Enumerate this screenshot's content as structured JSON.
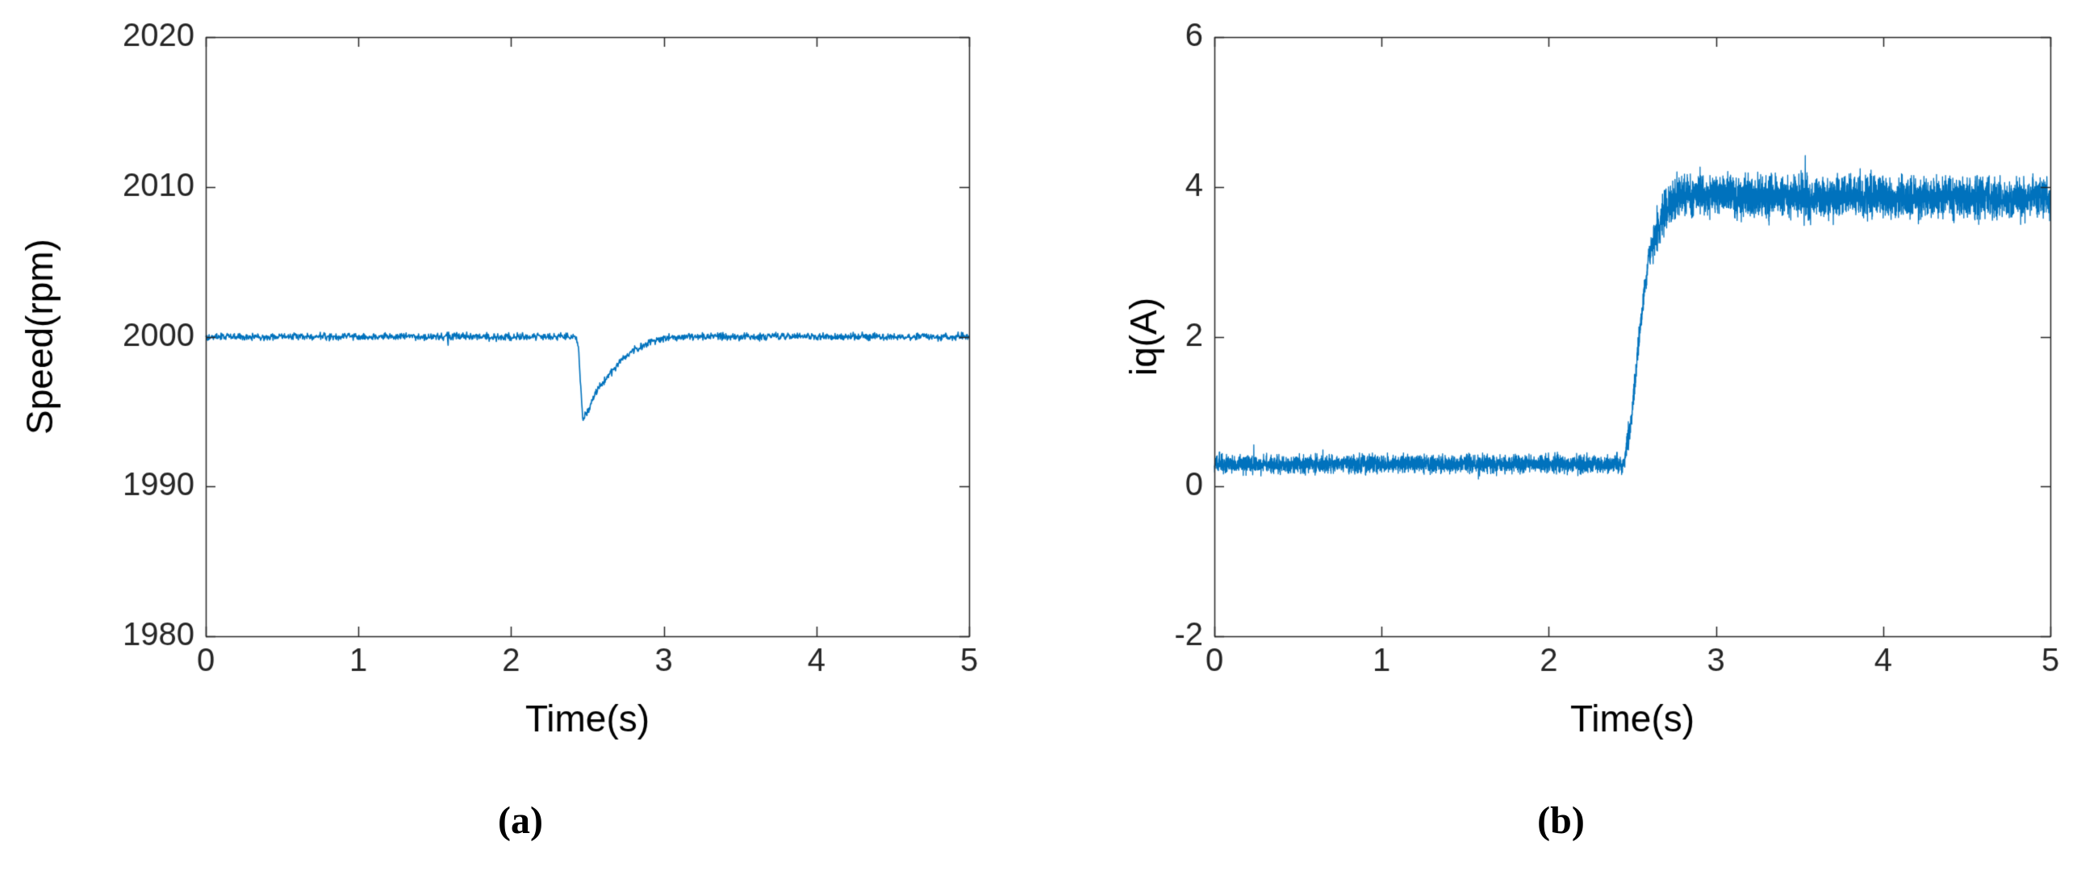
{
  "figure": {
    "background": "#ffffff",
    "axis_color": "#262626",
    "label_color": "#000000"
  },
  "chart_data": [
    {
      "id": "a",
      "type": "line",
      "title": "",
      "xlabel": "Time(s)",
      "ylabel": "Speed(rpm)",
      "caption": "(a)",
      "xlim": [
        0,
        5
      ],
      "ylim": [
        1980,
        2020
      ],
      "xticks": [
        0,
        1,
        2,
        3,
        4,
        5
      ],
      "xtick_labels": [
        "0",
        "1",
        "2",
        "3",
        "4",
        "5"
      ],
      "yticks": [
        1980,
        1990,
        2000,
        2010,
        2020
      ],
      "ytick_labels": [
        "1980",
        "1990",
        "2000",
        "2010",
        "2020"
      ],
      "grid": false,
      "legend": null,
      "line_color": "#0072BD",
      "series": [
        {
          "name": "speed",
          "description": "Motor speed holds about 2000 rpm, dips to about 1994 rpm at t=2.45 s under a load step, recovers to 2000 rpm by about t=3.1 s",
          "keypoints": [
            [
              0,
              2000
            ],
            [
              2.42,
              2000
            ],
            [
              2.44,
              1999.3
            ],
            [
              2.47,
              1994.4
            ],
            [
              2.5,
              1995.0
            ],
            [
              2.55,
              1996.2
            ],
            [
              2.6,
              1996.9
            ],
            [
              2.65,
              1997.6
            ],
            [
              2.72,
              1998.4
            ],
            [
              2.8,
              1999.1
            ],
            [
              2.9,
              1999.6
            ],
            [
              3.0,
              1999.9
            ],
            [
              3.15,
              2000
            ],
            [
              5,
              2000
            ]
          ],
          "noise_segments": [
            [
              0,
              5,
              0.27
            ]
          ]
        }
      ]
    },
    {
      "id": "b",
      "type": "line",
      "title": "",
      "xlabel": "Time(s)",
      "ylabel": "iq(A)",
      "caption": "(b)",
      "xlim": [
        0,
        5
      ],
      "ylim": [
        -2,
        6
      ],
      "xticks": [
        0,
        1,
        2,
        3,
        4,
        5
      ],
      "xtick_labels": [
        "0",
        "1",
        "2",
        "3",
        "4",
        "5"
      ],
      "yticks": [
        -2,
        0,
        2,
        4,
        6
      ],
      "ytick_labels": [
        "-2",
        "0",
        "2",
        "4",
        "6"
      ],
      "grid": false,
      "legend": null,
      "line_color": "#0072BD",
      "series": [
        {
          "name": "iq",
          "description": "q-axis current about 0.3 A until t=2.45 s, then steps up to a noisy band around 3.8-3.9 A",
          "keypoints": [
            [
              0,
              0.3
            ],
            [
              2.45,
              0.3
            ],
            [
              2.5,
              1.0
            ],
            [
              2.55,
              2.2
            ],
            [
              2.6,
              3.1
            ],
            [
              2.67,
              3.6
            ],
            [
              2.75,
              3.82
            ],
            [
              2.9,
              3.9
            ],
            [
              3.1,
              3.87
            ],
            [
              5,
              3.85
            ]
          ],
          "noise_segments": [
            [
              0,
              2.45,
              0.13
            ],
            [
              2.45,
              2.62,
              0.18
            ],
            [
              2.62,
              5,
              0.3
            ]
          ]
        }
      ]
    }
  ]
}
